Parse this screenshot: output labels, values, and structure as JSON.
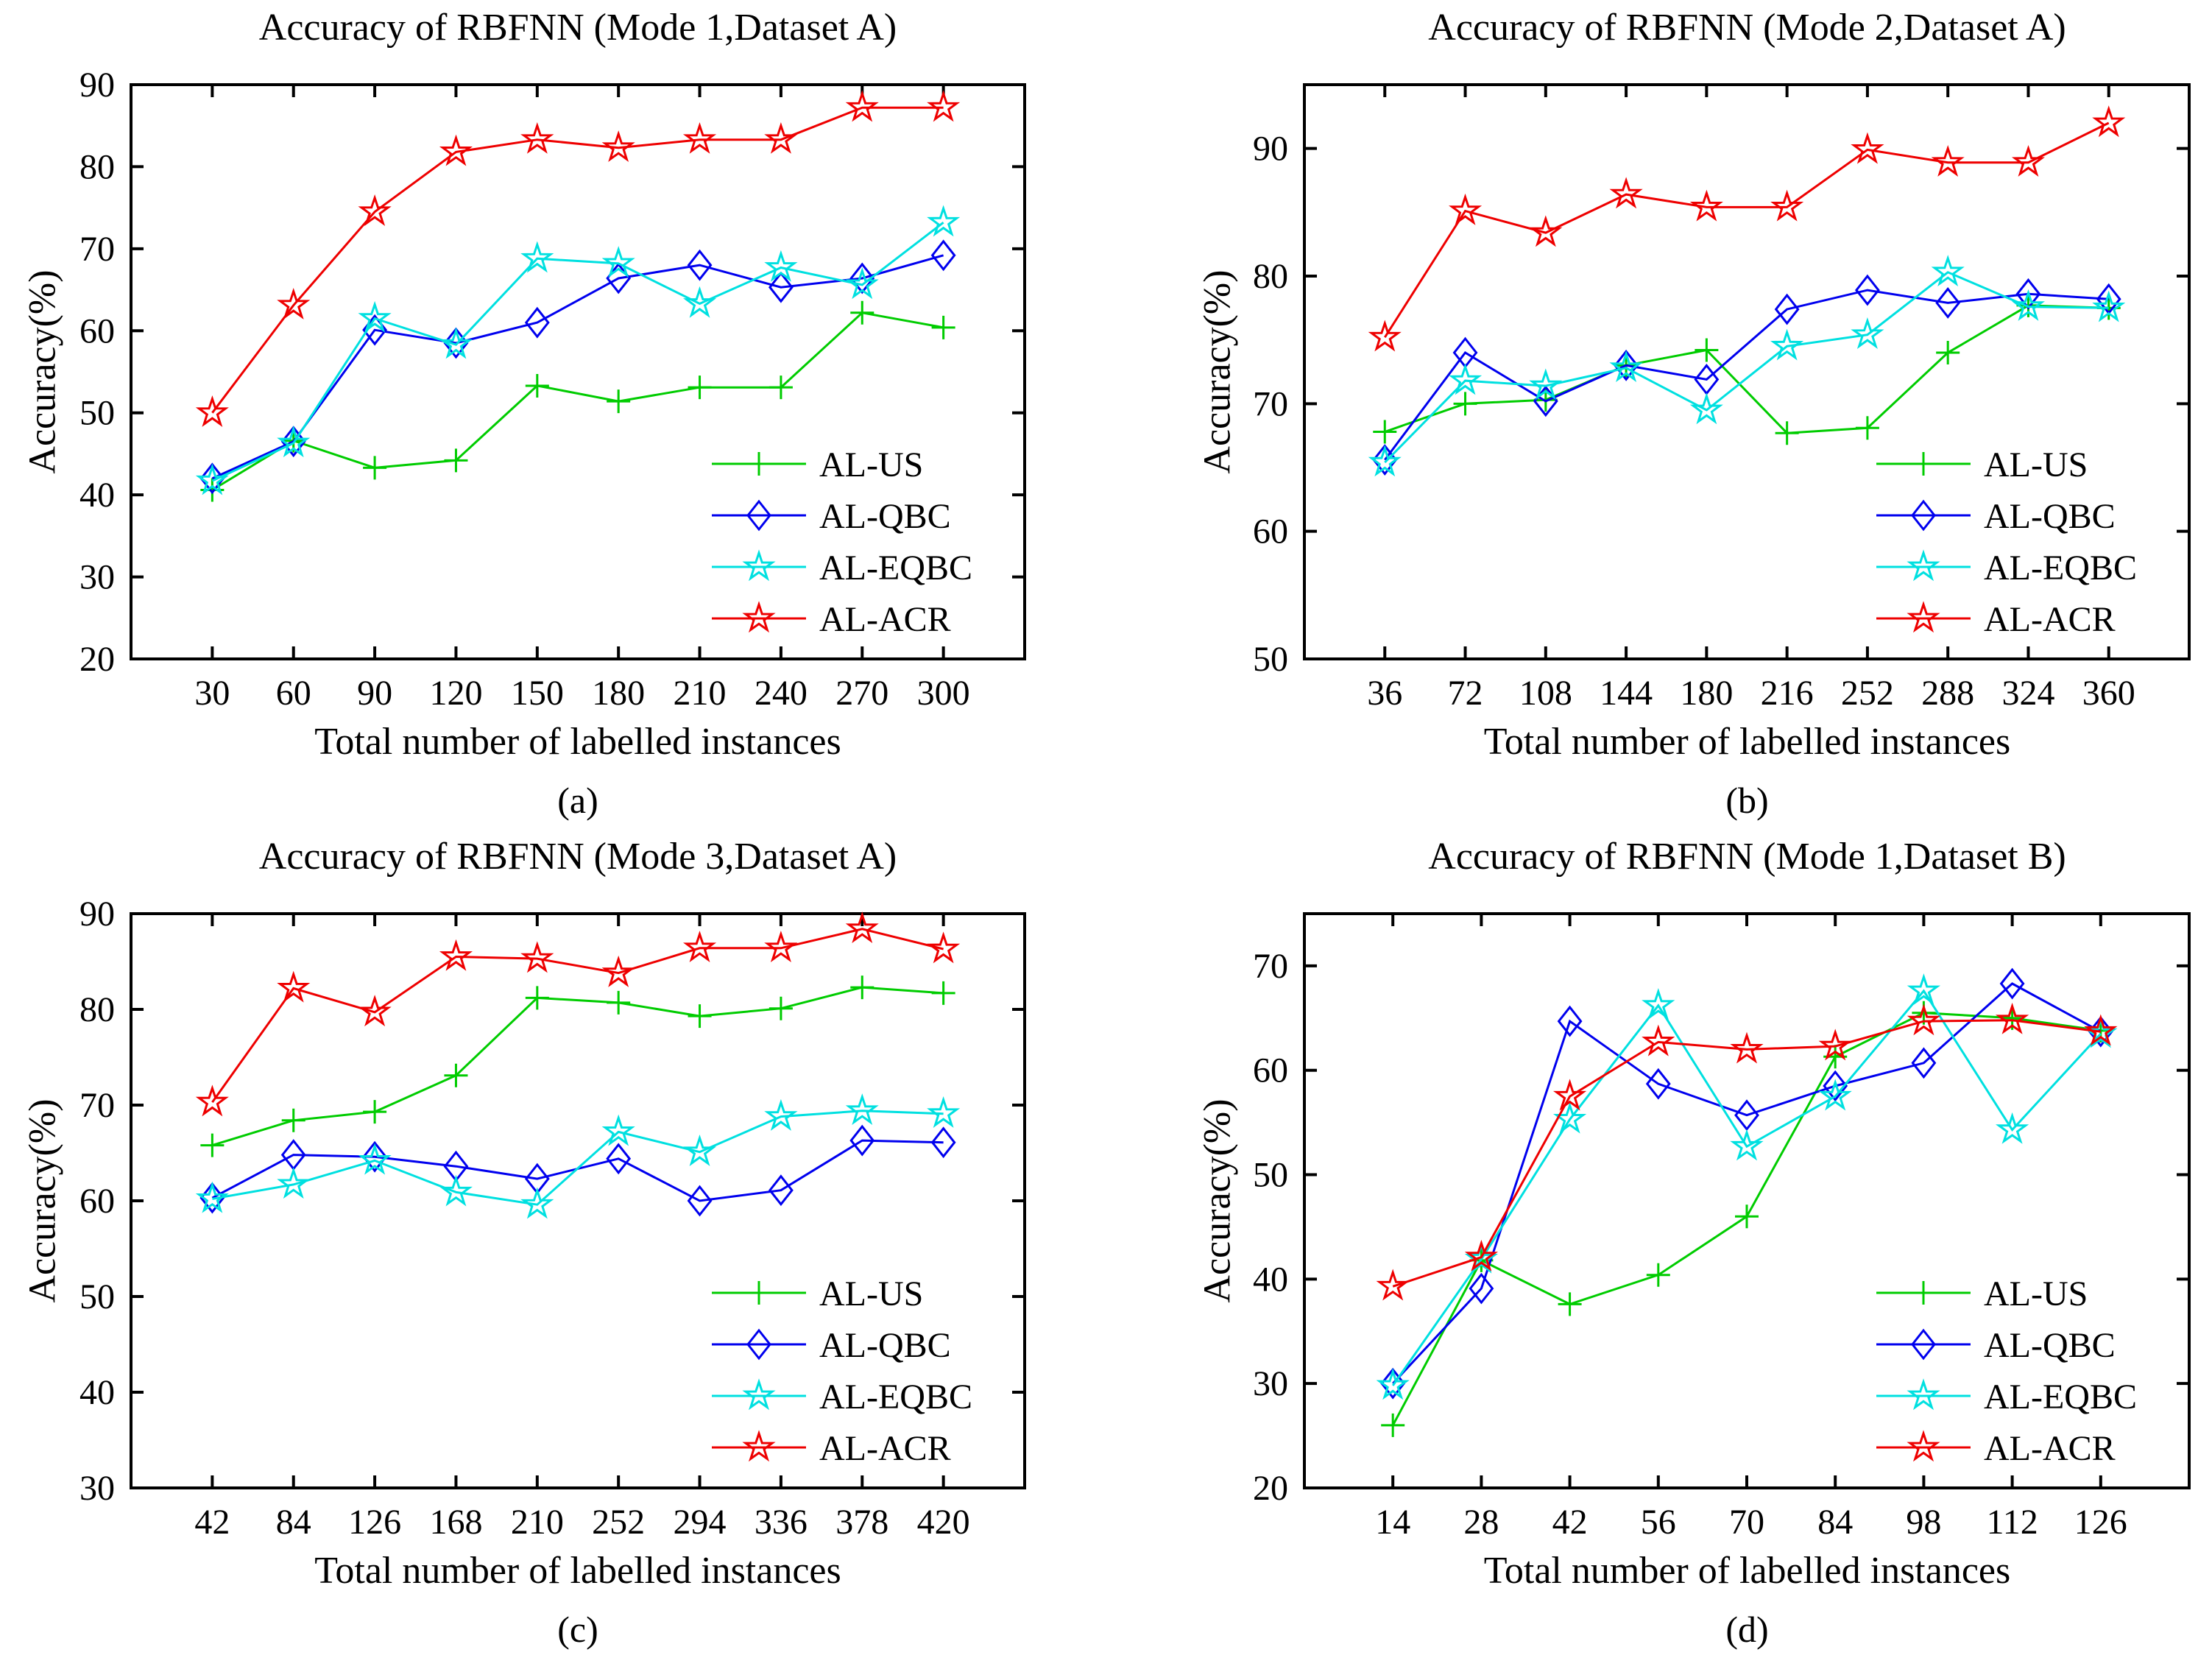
{
  "figure": {
    "background": "#ffffff",
    "axis_color": "#000000",
    "text_color": "#000000",
    "series_colors": {
      "AL-US": "#00cc00",
      "AL-QBC": "#0000ee",
      "AL-EQBC": "#00e0e0",
      "AL-ACR": "#ee0000"
    }
  },
  "chart_data": [
    {
      "type": "line",
      "panel": "a",
      "title": "Accuracy of RBFNN (Mode 1,Dataset A)",
      "sublabel": "(a)",
      "xlabel": "Total number of labelled instances",
      "ylabel": "Accuracy(%)",
      "x": [
        30,
        60,
        90,
        120,
        150,
        180,
        210,
        240,
        270,
        300
      ],
      "xlim": [
        0,
        330
      ],
      "ylim": [
        20,
        90
      ],
      "yticks": [
        20,
        30,
        40,
        50,
        60,
        70,
        80,
        90
      ],
      "grid": false,
      "legend_position": "bottom-right",
      "series": [
        {
          "name": "AL-US",
          "color": "#00cc00",
          "marker": "plus",
          "values": [
            40.6,
            46.6,
            43.3,
            44.2,
            53.3,
            51.4,
            53.1,
            53.1,
            62.2,
            60.4
          ]
        },
        {
          "name": "AL-QBC",
          "color": "#0000ee",
          "marker": "diamond",
          "values": [
            42.0,
            46.5,
            60.1,
            58.5,
            61.0,
            66.4,
            68.0,
            65.3,
            66.4,
            69.2
          ]
        },
        {
          "name": "AL-EQBC",
          "color": "#00e0e0",
          "marker": "pentagram",
          "values": [
            41.7,
            46.3,
            61.5,
            58.3,
            68.8,
            68.2,
            63.3,
            67.7,
            65.6,
            73.2
          ]
        },
        {
          "name": "AL-ACR",
          "color": "#ee0000",
          "marker": "pentagram",
          "values": [
            50.0,
            63.1,
            74.5,
            81.8,
            83.3,
            82.3,
            83.3,
            83.3,
            87.2,
            87.2
          ]
        }
      ]
    },
    {
      "type": "line",
      "panel": "b",
      "title": "Accuracy of RBFNN (Mode 2,Dataset A)",
      "sublabel": "(b)",
      "xlabel": "Total number of labelled instances",
      "ylabel": "Accuracy(%)",
      "x": [
        36,
        72,
        108,
        144,
        180,
        216,
        252,
        288,
        324,
        360
      ],
      "xlim": [
        0,
        396
      ],
      "ylim": [
        50,
        95
      ],
      "yticks": [
        50,
        60,
        70,
        80,
        90
      ],
      "grid": false,
      "legend_position": "bottom-right",
      "series": [
        {
          "name": "AL-US",
          "color": "#00cc00",
          "marker": "plus",
          "values": [
            67.8,
            70.0,
            70.3,
            73.0,
            74.2,
            67.7,
            68.1,
            74.0,
            77.7,
            77.5
          ]
        },
        {
          "name": "AL-QBC",
          "color": "#0000ee",
          "marker": "diamond",
          "values": [
            65.6,
            74.0,
            70.2,
            73.0,
            71.9,
            77.4,
            78.9,
            77.9,
            78.6,
            78.2
          ]
        },
        {
          "name": "AL-EQBC",
          "color": "#00e0e0",
          "marker": "pentagram",
          "values": [
            65.4,
            71.8,
            71.4,
            72.8,
            69.5,
            74.5,
            75.4,
            80.3,
            77.6,
            77.5
          ]
        },
        {
          "name": "AL-ACR",
          "color": "#ee0000",
          "marker": "pentagram",
          "values": [
            75.2,
            85.1,
            83.4,
            86.4,
            85.4,
            85.4,
            89.9,
            88.9,
            88.9,
            92.0
          ]
        }
      ]
    },
    {
      "type": "line",
      "panel": "c",
      "title": "Accuracy of RBFNN (Mode 3,Dataset A)",
      "sublabel": "(c)",
      "xlabel": "Total number of labelled instances",
      "ylabel": "Accuracy(%)",
      "x": [
        42,
        84,
        126,
        168,
        210,
        252,
        294,
        336,
        378,
        420
      ],
      "xlim": [
        0,
        462
      ],
      "ylim": [
        30,
        90
      ],
      "yticks": [
        30,
        40,
        50,
        60,
        70,
        80,
        90
      ],
      "grid": false,
      "legend_position": "bottom-right",
      "series": [
        {
          "name": "AL-US",
          "color": "#00cc00",
          "marker": "plus",
          "values": [
            65.8,
            68.4,
            69.3,
            73.1,
            81.2,
            80.7,
            79.3,
            80.1,
            82.3,
            81.7
          ]
        },
        {
          "name": "AL-QBC",
          "color": "#0000ee",
          "marker": "diamond",
          "values": [
            60.3,
            64.8,
            64.6,
            63.6,
            62.3,
            64.4,
            60.0,
            61.1,
            66.3,
            66.1
          ]
        },
        {
          "name": "AL-EQBC",
          "color": "#00e0e0",
          "marker": "pentagram",
          "values": [
            60.2,
            61.7,
            64.2,
            60.9,
            59.6,
            67.2,
            65.1,
            68.8,
            69.4,
            69.1
          ]
        },
        {
          "name": "AL-ACR",
          "color": "#ee0000",
          "marker": "pentagram",
          "values": [
            70.3,
            82.2,
            79.7,
            85.5,
            85.3,
            83.8,
            86.4,
            86.4,
            88.4,
            86.3
          ]
        }
      ]
    },
    {
      "type": "line",
      "panel": "d",
      "title": "Accuracy of RBFNN (Mode 1,Dataset B)",
      "sublabel": "(d)",
      "xlabel": "Total number of labelled instances",
      "ylabel": "Accuracy(%)",
      "x": [
        14,
        28,
        42,
        56,
        70,
        84,
        98,
        112,
        126
      ],
      "xlim": [
        0,
        140
      ],
      "ylim": [
        20,
        75
      ],
      "yticks": [
        20,
        30,
        40,
        50,
        60,
        70
      ],
      "grid": false,
      "legend_position": "bottom-right",
      "series": [
        {
          "name": "AL-US",
          "color": "#00cc00",
          "marker": "plus",
          "values": [
            26.0,
            41.8,
            37.6,
            40.4,
            46.0,
            61.3,
            65.5,
            65.0,
            63.8
          ]
        },
        {
          "name": "AL-QBC",
          "color": "#0000ee",
          "marker": "diamond",
          "values": [
            30.0,
            39.1,
            64.7,
            58.7,
            55.7,
            58.5,
            60.7,
            68.3,
            63.7
          ]
        },
        {
          "name": "AL-EQBC",
          "color": "#00e0e0",
          "marker": "pentagram",
          "values": [
            29.8,
            41.9,
            55.3,
            66.2,
            52.7,
            57.5,
            67.6,
            54.3,
            63.5
          ]
        },
        {
          "name": "AL-ACR",
          "color": "#ee0000",
          "marker": "pentagram",
          "values": [
            39.3,
            42.1,
            57.5,
            62.7,
            62.0,
            62.3,
            64.7,
            64.8,
            63.7
          ]
        }
      ]
    }
  ]
}
